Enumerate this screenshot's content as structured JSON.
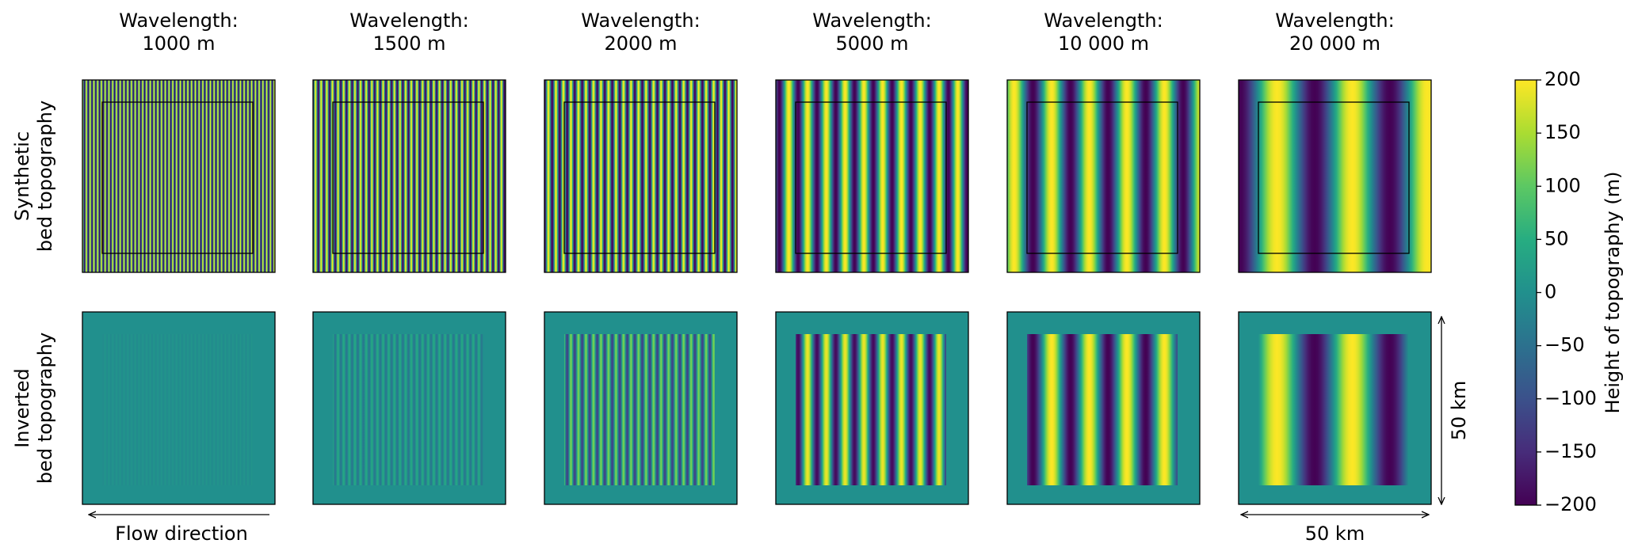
{
  "chart_data": {
    "type": "heatmap",
    "panels": [
      {
        "title": [
          "Wavelength:",
          "1000 m"
        ],
        "wavelength": 1000,
        "inverted_amplitude": 8
      },
      {
        "title": [
          "Wavelength:",
          "1500 m"
        ],
        "wavelength": 1500,
        "inverted_amplitude": 40
      },
      {
        "title": [
          "Wavelength:",
          "2000 m"
        ],
        "wavelength": 2000,
        "inverted_amplitude": 120
      },
      {
        "title": [
          "Wavelength:",
          "5000 m"
        ],
        "wavelength": 5000,
        "inverted_amplitude": 190
      },
      {
        "title": [
          "Wavelength:",
          "10 000 m"
        ],
        "wavelength": 10000,
        "inverted_amplitude": 200
      },
      {
        "title": [
          "Wavelength:",
          "20 000 m"
        ],
        "wavelength": 20000,
        "inverted_amplitude": 200
      }
    ],
    "row_labels": [
      [
        "Synthetic",
        "bed topography"
      ],
      [
        "Inverted",
        "bed topography"
      ]
    ],
    "colorbar": {
      "label": "Height of topography (m)",
      "lim": [
        -200,
        200
      ],
      "ticks": [
        {
          "value": -200,
          "label": "−200"
        },
        {
          "value": -150,
          "label": "−150"
        },
        {
          "value": -100,
          "label": "−100"
        },
        {
          "value": -50,
          "label": "−50"
        },
        0,
        50,
        100,
        150,
        200
      ]
    },
    "flow_label": "Flow direction",
    "scale_bar": {
      "label": "50 km",
      "length": 50
    }
  }
}
